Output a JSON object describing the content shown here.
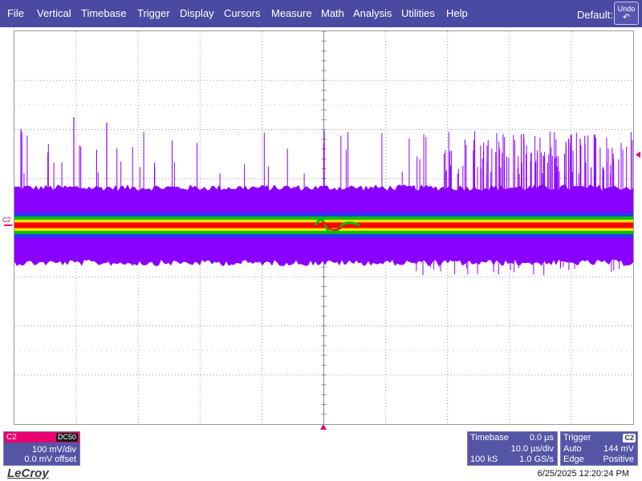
{
  "menu": {
    "items": [
      "File",
      "Vertical",
      "Timebase",
      "Trigger",
      "Display",
      "Cursors",
      "Measure",
      "Math",
      "Analysis",
      "Utilities",
      "Help"
    ],
    "default_label": "Default:",
    "undo_label": "Undo",
    "undo_icon": "undo-arrow-icon"
  },
  "channel_marker": "C2",
  "colors": {
    "menu_bg": "#4a4aa2",
    "trace_purple": "#8a00ff",
    "trace_blue": "#3333ff",
    "trace_red": "#ff0000",
    "trace_yellow": "#ffe000",
    "trace_green": "#00c000",
    "channel_accent": "#e8006f"
  },
  "channel_panel": {
    "name": "C2",
    "coupling": "DC50",
    "scale": "100 mV/div",
    "offset": "0.0 mV offset"
  },
  "timebase_panel": {
    "title": "Timebase",
    "delay": "0.0 µs",
    "time_per_div": "10.0 µs/div",
    "samples": "100 kS",
    "sample_rate": "1.0 GS/s"
  },
  "trigger_panel": {
    "title": "Trigger",
    "source": "C2",
    "mode": "Auto",
    "level": "144 mV",
    "type": "Edge",
    "slope": "Positive"
  },
  "brand": "LeCroy",
  "datetime": "6/25/2025 12:20:24 PM"
}
